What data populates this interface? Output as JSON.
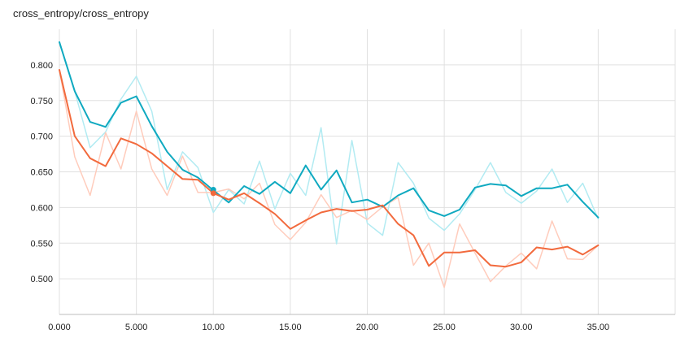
{
  "chart_data": {
    "type": "line",
    "title": "cross_entropy/cross_entropy",
    "xlabel": "",
    "ylabel": "",
    "xlim": [
      0,
      40
    ],
    "ylim": [
      0.45,
      0.85
    ],
    "grid": true,
    "x_ticks": [
      {
        "value": 0,
        "label": "0.000"
      },
      {
        "value": 5,
        "label": "5.000"
      },
      {
        "value": 10,
        "label": "10.00"
      },
      {
        "value": 15,
        "label": "15.00"
      },
      {
        "value": 20,
        "label": "20.00"
      },
      {
        "value": 25,
        "label": "25.00"
      },
      {
        "value": 30,
        "label": "30.00"
      },
      {
        "value": 35,
        "label": "35.00"
      }
    ],
    "y_ticks": [
      {
        "value": 0.5,
        "label": "0.500"
      },
      {
        "value": 0.55,
        "label": "0.550"
      },
      {
        "value": 0.6,
        "label": "0.600"
      },
      {
        "value": 0.65,
        "label": "0.650"
      },
      {
        "value": 0.7,
        "label": "0.700"
      },
      {
        "value": 0.75,
        "label": "0.750"
      },
      {
        "value": 0.8,
        "label": "0.800"
      }
    ],
    "series": [
      {
        "name": "teal-raw",
        "color": "#b2ebf2",
        "x": [
          0,
          1,
          2,
          3,
          4,
          5,
          6,
          7,
          8,
          9,
          10,
          11,
          12,
          13,
          14,
          15,
          16,
          17,
          18,
          19,
          20,
          21,
          22,
          23,
          24,
          25,
          26,
          27,
          28,
          29,
          30,
          31,
          32,
          33,
          34,
          35
        ],
        "values": [
          0.832,
          0.763,
          0.684,
          0.706,
          0.752,
          0.784,
          0.735,
          0.625,
          0.678,
          0.656,
          0.593,
          0.625,
          0.605,
          0.665,
          0.598,
          0.648,
          0.617,
          0.712,
          0.549,
          0.694,
          0.578,
          0.561,
          0.663,
          0.634,
          0.585,
          0.568,
          0.591,
          0.625,
          0.663,
          0.621,
          0.606,
          0.623,
          0.654,
          0.607,
          0.634,
          0.584
        ]
      },
      {
        "name": "orange-raw",
        "color": "#ffccbc",
        "x": [
          0,
          1,
          2,
          3,
          4,
          5,
          6,
          7,
          8,
          9,
          10,
          11,
          12,
          13,
          14,
          15,
          16,
          17,
          18,
          19,
          20,
          21,
          22,
          23,
          24,
          25,
          26,
          27,
          28,
          29,
          30,
          31,
          32,
          33,
          34,
          35
        ],
        "values": [
          0.793,
          0.671,
          0.617,
          0.705,
          0.654,
          0.735,
          0.654,
          0.617,
          0.672,
          0.621,
          0.621,
          0.626,
          0.612,
          0.634,
          0.576,
          0.555,
          0.579,
          0.618,
          0.586,
          0.596,
          0.583,
          0.601,
          0.614,
          0.519,
          0.55,
          0.488,
          0.577,
          0.536,
          0.496,
          0.518,
          0.536,
          0.514,
          0.581,
          0.528,
          0.527,
          0.547
        ]
      },
      {
        "name": "teal-smoothed",
        "color": "#0fa9c0",
        "x": [
          0,
          1,
          2,
          3,
          4,
          5,
          6,
          7,
          8,
          9,
          10,
          11,
          12,
          13,
          14,
          15,
          16,
          17,
          18,
          19,
          20,
          21,
          22,
          23,
          24,
          25,
          26,
          27,
          28,
          29,
          30,
          31,
          32,
          33,
          34,
          35
        ],
        "values": [
          0.832,
          0.763,
          0.72,
          0.713,
          0.747,
          0.756,
          0.714,
          0.678,
          0.653,
          0.642,
          0.624,
          0.607,
          0.63,
          0.619,
          0.636,
          0.62,
          0.659,
          0.625,
          0.652,
          0.607,
          0.611,
          0.601,
          0.617,
          0.627,
          0.596,
          0.588,
          0.597,
          0.628,
          0.633,
          0.631,
          0.616,
          0.627,
          0.627,
          0.632,
          0.608,
          0.586
        ]
      },
      {
        "name": "orange-smoothed",
        "color": "#f26a3d",
        "x": [
          0,
          1,
          2,
          3,
          4,
          5,
          6,
          7,
          8,
          9,
          10,
          11,
          12,
          13,
          14,
          15,
          16,
          17,
          18,
          19,
          20,
          21,
          22,
          23,
          24,
          25,
          26,
          27,
          28,
          29,
          30,
          31,
          32,
          33,
          34,
          35
        ],
        "values": [
          0.793,
          0.7,
          0.669,
          0.658,
          0.697,
          0.689,
          0.676,
          0.658,
          0.64,
          0.639,
          0.62,
          0.611,
          0.62,
          0.606,
          0.591,
          0.57,
          0.582,
          0.593,
          0.598,
          0.595,
          0.597,
          0.603,
          0.577,
          0.561,
          0.518,
          0.537,
          0.537,
          0.54,
          0.519,
          0.517,
          0.523,
          0.544,
          0.541,
          0.545,
          0.534,
          0.547
        ]
      }
    ],
    "markers": [
      {
        "name": "teal-marker",
        "x": 10,
        "y": 0.625,
        "color": "#0fa9c0"
      },
      {
        "name": "orange-marker",
        "x": 10,
        "y": 0.62,
        "color": "#f26a3d"
      }
    ],
    "colors": {
      "grid": "#e0e0e0",
      "axis": "#bdbdbd",
      "text": "#212121"
    }
  }
}
